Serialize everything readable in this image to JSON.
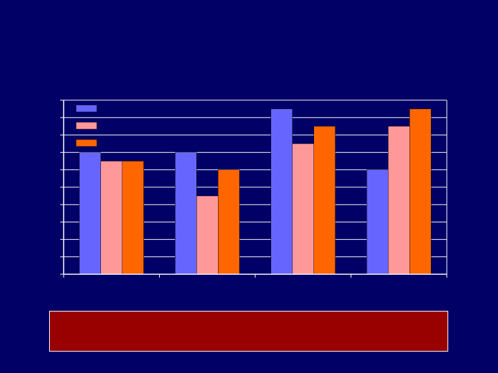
{
  "colors": {
    "background": "#000066",
    "series": [
      "#6666FF",
      "#FF9999",
      "#FF6600"
    ],
    "gridline": "#FFFFFF",
    "caption_box": "#990000"
  },
  "caption": "",
  "chart_data": {
    "type": "bar",
    "categories": [
      "",
      "",
      "",
      ""
    ],
    "series": [
      {
        "values": [
          7,
          7,
          9.5,
          6
        ]
      },
      {
        "values": [
          6.5,
          4.5,
          7.5,
          8.5
        ]
      },
      {
        "values": [
          6.5,
          6,
          8.5,
          9.5
        ]
      }
    ],
    "legend": {
      "entries": [
        "",
        "",
        ""
      ],
      "position": "top-left"
    },
    "title": "",
    "xlabel": "",
    "ylabel": "",
    "ylim": [
      0,
      10
    ],
    "grid": true
  }
}
